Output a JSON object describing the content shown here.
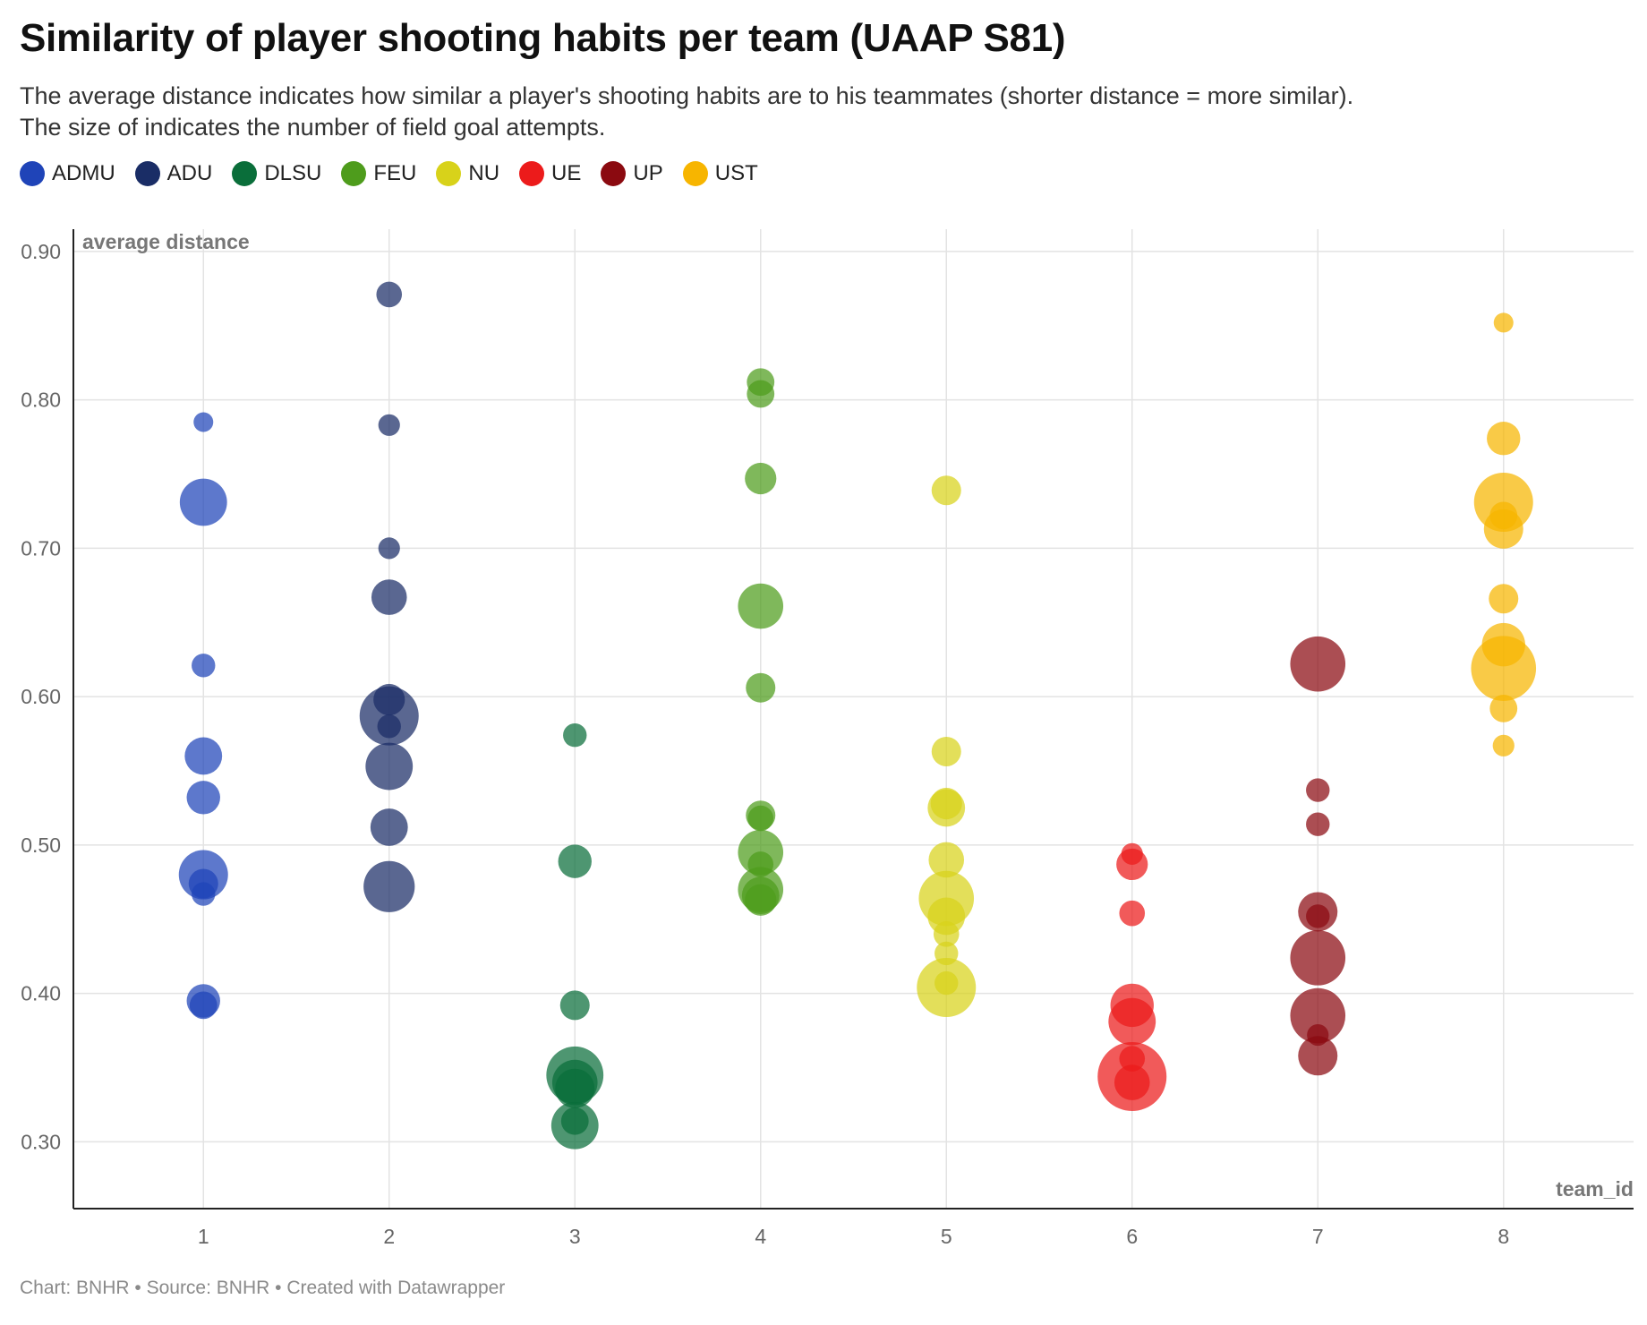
{
  "title": "Similarity of player shooting habits per team (UAAP S81)",
  "subtitle_lines": [
    "The average distance indicates how similar a player's shooting habits are to his teammates (shorter distance = more similar).",
    "The size of indicates the number of field goal attempts."
  ],
  "footer": {
    "chart_credit": "Chart: BNHR",
    "source": "Source: BNHR",
    "tool": "Created with Datawrapper",
    "separator": "•"
  },
  "chart_data": {
    "type": "scatter",
    "title": "Similarity of player shooting habits per team (UAAP S81)",
    "xlabel": "team_id",
    "ylabel": "average distance",
    "xlim": [
      0.3,
      8.7
    ],
    "ylim": [
      0.255,
      0.915
    ],
    "x_ticks": [
      1,
      2,
      3,
      4,
      5,
      6,
      7,
      8
    ],
    "y_ticks": [
      0.3,
      0.4,
      0.5,
      0.6,
      0.7,
      0.8,
      0.9
    ],
    "y_tick_labels": [
      "0.30",
      "0.40",
      "0.50",
      "0.60",
      "0.70",
      "0.80",
      "0.90"
    ],
    "grid": true,
    "legend_position": "top-left",
    "size_encodes": "field goal attempts (relative)",
    "series": [
      {
        "name": "ADMU",
        "color": "#1f44b8",
        "team_id": 1,
        "points": [
          {
            "y": 0.785,
            "s": 1.0
          },
          {
            "y": 0.731,
            "s": 2.4
          },
          {
            "y": 0.621,
            "s": 1.2
          },
          {
            "y": 0.56,
            "s": 1.9
          },
          {
            "y": 0.532,
            "s": 1.7
          },
          {
            "y": 0.48,
            "s": 2.5
          },
          {
            "y": 0.474,
            "s": 1.5
          },
          {
            "y": 0.467,
            "s": 1.2
          },
          {
            "y": 0.395,
            "s": 1.7
          },
          {
            "y": 0.392,
            "s": 1.4
          }
        ]
      },
      {
        "name": "ADU",
        "color": "#1a2d66",
        "team_id": 2,
        "points": [
          {
            "y": 0.871,
            "s": 1.3
          },
          {
            "y": 0.783,
            "s": 1.1
          },
          {
            "y": 0.7,
            "s": 1.1
          },
          {
            "y": 0.667,
            "s": 1.8
          },
          {
            "y": 0.598,
            "s": 1.6
          },
          {
            "y": 0.587,
            "s": 3.0
          },
          {
            "y": 0.58,
            "s": 1.2
          },
          {
            "y": 0.553,
            "s": 2.4
          },
          {
            "y": 0.512,
            "s": 1.9
          },
          {
            "y": 0.472,
            "s": 2.6
          }
        ]
      },
      {
        "name": "DLSU",
        "color": "#0a6e3a",
        "team_id": 3,
        "points": [
          {
            "y": 0.574,
            "s": 1.2
          },
          {
            "y": 0.489,
            "s": 1.7
          },
          {
            "y": 0.392,
            "s": 1.5
          },
          {
            "y": 0.345,
            "s": 2.9
          },
          {
            "y": 0.34,
            "s": 2.3
          },
          {
            "y": 0.336,
            "s": 2.0
          },
          {
            "y": 0.314,
            "s": 1.4
          },
          {
            "y": 0.311,
            "s": 2.4
          }
        ]
      },
      {
        "name": "FEU",
        "color": "#4e9c1c",
        "team_id": 4,
        "points": [
          {
            "y": 0.812,
            "s": 1.4
          },
          {
            "y": 0.804,
            "s": 1.4
          },
          {
            "y": 0.747,
            "s": 1.6
          },
          {
            "y": 0.661,
            "s": 2.3
          },
          {
            "y": 0.606,
            "s": 1.5
          },
          {
            "y": 0.52,
            "s": 1.5
          },
          {
            "y": 0.518,
            "s": 1.3
          },
          {
            "y": 0.495,
            "s": 2.3
          },
          {
            "y": 0.487,
            "s": 1.3
          },
          {
            "y": 0.47,
            "s": 2.3
          },
          {
            "y": 0.466,
            "s": 1.9
          },
          {
            "y": 0.463,
            "s": 1.6
          }
        ]
      },
      {
        "name": "NU",
        "color": "#d8d21a",
        "team_id": 5,
        "points": [
          {
            "y": 0.739,
            "s": 1.5
          },
          {
            "y": 0.563,
            "s": 1.5
          },
          {
            "y": 0.528,
            "s": 1.6
          },
          {
            "y": 0.525,
            "s": 1.9
          },
          {
            "y": 0.49,
            "s": 1.8
          },
          {
            "y": 0.464,
            "s": 2.8
          },
          {
            "y": 0.452,
            "s": 1.9
          },
          {
            "y": 0.44,
            "s": 1.3
          },
          {
            "y": 0.427,
            "s": 1.2
          },
          {
            "y": 0.407,
            "s": 1.2
          },
          {
            "y": 0.404,
            "s": 3.0
          }
        ]
      },
      {
        "name": "UE",
        "color": "#ec1b1b",
        "team_id": 6,
        "points": [
          {
            "y": 0.494,
            "s": 1.1
          },
          {
            "y": 0.487,
            "s": 1.6
          },
          {
            "y": 0.454,
            "s": 1.3
          },
          {
            "y": 0.392,
            "s": 2.2
          },
          {
            "y": 0.381,
            "s": 2.4
          },
          {
            "y": 0.356,
            "s": 1.3
          },
          {
            "y": 0.344,
            "s": 3.5
          },
          {
            "y": 0.34,
            "s": 1.8
          }
        ]
      },
      {
        "name": "UP",
        "color": "#8b0a10",
        "team_id": 7,
        "points": [
          {
            "y": 0.622,
            "s": 2.8
          },
          {
            "y": 0.537,
            "s": 1.2
          },
          {
            "y": 0.514,
            "s": 1.2
          },
          {
            "y": 0.455,
            "s": 2.0
          },
          {
            "y": 0.452,
            "s": 1.2
          },
          {
            "y": 0.424,
            "s": 2.8
          },
          {
            "y": 0.385,
            "s": 2.8
          },
          {
            "y": 0.372,
            "s": 1.1
          },
          {
            "y": 0.358,
            "s": 2.0
          }
        ]
      },
      {
        "name": "UST",
        "color": "#f7b500",
        "team_id": 8,
        "points": [
          {
            "y": 0.852,
            "s": 1.0
          },
          {
            "y": 0.774,
            "s": 1.7
          },
          {
            "y": 0.731,
            "s": 3.0
          },
          {
            "y": 0.722,
            "s": 1.4
          },
          {
            "y": 0.713,
            "s": 2.0
          },
          {
            "y": 0.666,
            "s": 1.5
          },
          {
            "y": 0.635,
            "s": 2.2
          },
          {
            "y": 0.619,
            "s": 3.3
          },
          {
            "y": 0.592,
            "s": 1.4
          },
          {
            "y": 0.567,
            "s": 1.1
          }
        ]
      }
    ]
  }
}
